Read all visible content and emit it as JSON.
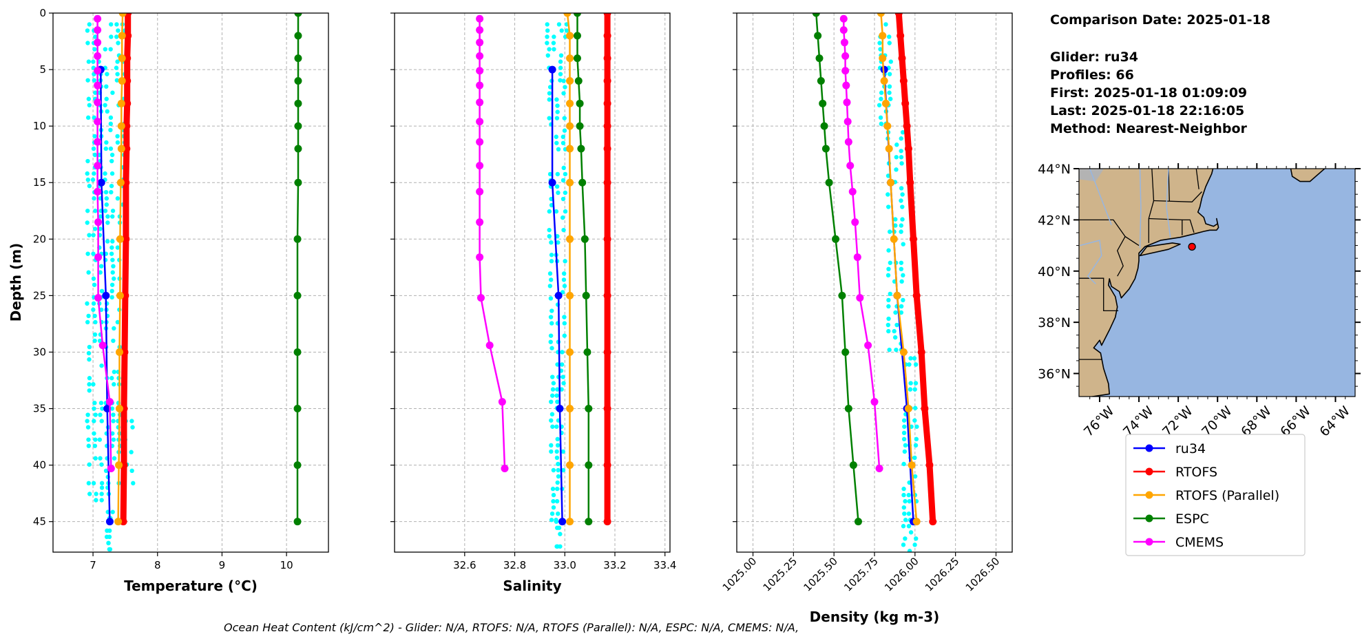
{
  "info": {
    "lines": [
      "Comparison Date: 2025-01-18",
      "Glider: ru34",
      "Profiles: 66",
      "First: 2025-01-18 01:09:09",
      "Last: 2025-01-18 22:16:05",
      "Method: Nearest-Neighbor"
    ]
  },
  "footer": "Ocean Heat Content (kJ/cm^2) - Glider: N/A,  RTOFS: N/A,  RTOFS (Parallel): N/A,  ESPC: N/A,  CMEMS: N/A,",
  "colors": {
    "ru34": "#0000ff",
    "RTOFS": "#ff0000",
    "RTOFS (Parallel)": "#ffa500",
    "ESPC": "#008000",
    "CMEMS": "#ff00ff",
    "glider_scatter": "#00ffff",
    "land": "#cfb48b",
    "ocean": "#97b6e1"
  },
  "legend": [
    "ru34",
    "RTOFS",
    "RTOFS (Parallel)",
    "ESPC",
    "CMEMS"
  ],
  "depths": {
    "glider": [
      5,
      15,
      25,
      35,
      45
    ],
    "model": [
      0,
      2,
      4,
      6,
      8,
      10,
      12,
      15,
      20,
      25,
      30,
      35,
      40,
      45
    ],
    "cmems": [
      0.5,
      1.5,
      2.6,
      3.8,
      5.1,
      6.4,
      7.9,
      9.6,
      11.4,
      13.5,
      15.8,
      18.5,
      21.6,
      25.2,
      29.4,
      34.4,
      40.3
    ]
  },
  "chart_data": [
    {
      "type": "line",
      "xlabel": "Temperature (°C)",
      "ylabel": "Depth (m)",
      "xlim": [
        6.38,
        10.65
      ],
      "ylim": [
        47.7,
        0
      ],
      "xticks": [
        "7",
        "8",
        "9",
        "10"
      ],
      "yticks": [
        "0",
        "5",
        "10",
        "15",
        "20",
        "25",
        "30",
        "35",
        "40",
        "45"
      ],
      "grid": true,
      "glider_scatter_bands": [
        [
          1,
          18,
          6.88,
          7.52
        ],
        [
          18,
          35,
          6.88,
          7.45
        ],
        [
          35,
          42,
          6.88,
          7.65
        ],
        [
          42,
          43.6,
          6.88,
          7.3
        ],
        [
          43.6,
          47.7,
          7.22,
          7.3
        ]
      ],
      "series": [
        {
          "name": "ru34",
          "depths": "glider",
          "values": [
            7.12,
            7.13,
            7.2,
            7.22,
            7.26
          ]
        },
        {
          "name": "RTOFS",
          "depths": "model",
          "values": [
            7.54,
            7.54,
            7.53,
            7.53,
            7.53,
            7.52,
            7.52,
            7.51,
            7.51,
            7.5,
            7.49,
            7.48,
            7.48,
            7.47
          ]
        },
        {
          "name": "RTOFS (Parallel)",
          "depths": "model",
          "values": [
            7.46,
            7.45,
            7.45,
            7.45,
            7.44,
            7.44,
            7.44,
            7.43,
            7.42,
            7.42,
            7.41,
            7.41,
            7.4,
            7.39
          ]
        },
        {
          "name": "ESPC",
          "depths": "model",
          "values": [
            10.18,
            10.18,
            10.18,
            10.18,
            10.18,
            10.18,
            10.18,
            10.18,
            10.17,
            10.17,
            10.17,
            10.17,
            10.17,
            10.17
          ]
        },
        {
          "name": "CMEMS",
          "depths": "cmems",
          "values": [
            7.07,
            7.07,
            7.07,
            7.07,
            7.07,
            7.07,
            7.07,
            7.07,
            7.07,
            7.07,
            7.07,
            7.08,
            7.08,
            7.08,
            7.15,
            7.26,
            7.28
          ]
        }
      ]
    },
    {
      "type": "line",
      "xlabel": "Salinity",
      "xlim": [
        32.32,
        33.42
      ],
      "ylim": [
        47.7,
        0
      ],
      "xticks": [
        "32.6",
        "32.8",
        "33.0",
        "33.2",
        "33.4"
      ],
      "grid": true,
      "glider_scatter_bands": [
        [
          1,
          6,
          32.92,
          33.02
        ],
        [
          6,
          30,
          32.93,
          33.01
        ],
        [
          30,
          45,
          32.94,
          33.0
        ],
        [
          45,
          47.7,
          32.96,
          32.99
        ]
      ],
      "series": [
        {
          "name": "ru34",
          "depths": "glider",
          "values": [
            32.95,
            32.95,
            32.975,
            32.98,
            32.99
          ]
        },
        {
          "name": "RTOFS",
          "depths": "model",
          "values": [
            33.17,
            33.17,
            33.17,
            33.17,
            33.17,
            33.17,
            33.17,
            33.17,
            33.17,
            33.17,
            33.17,
            33.17,
            33.17,
            33.17
          ]
        },
        {
          "name": "RTOFS (Parallel)",
          "depths": "model",
          "values": [
            33.01,
            33.02,
            33.02,
            33.02,
            33.02,
            33.02,
            33.02,
            33.02,
            33.02,
            33.02,
            33.02,
            33.02,
            33.02,
            33.02
          ]
        },
        {
          "name": "ESPC",
          "depths": "model",
          "values": [
            33.05,
            33.05,
            33.05,
            33.055,
            33.06,
            33.06,
            33.065,
            33.07,
            33.08,
            33.085,
            33.09,
            33.095,
            33.095,
            33.095
          ]
        },
        {
          "name": "CMEMS",
          "depths": "cmems",
          "values": [
            32.66,
            32.66,
            32.66,
            32.66,
            32.66,
            32.66,
            32.66,
            32.66,
            32.66,
            32.66,
            32.66,
            32.66,
            32.66,
            32.665,
            32.7,
            32.75,
            32.76
          ]
        }
      ]
    },
    {
      "type": "line",
      "xlabel": "Density (kg m-3)",
      "xlim": [
        1024.9,
        1026.6
      ],
      "ylim": [
        47.7,
        0
      ],
      "xticks": [
        "1025.00",
        "1025.25",
        "1025.50",
        "1025.75",
        "1026.00",
        "1026.25",
        "1026.50"
      ],
      "grid": true,
      "glider_scatter_bands": [
        [
          1,
          10,
          1025.77,
          1025.86
        ],
        [
          10,
          30,
          1025.82,
          1025.94
        ],
        [
          30,
          47.7,
          1025.92,
          1026.02
        ]
      ],
      "series": [
        {
          "name": "ru34",
          "depths": "glider",
          "values": [
            1025.81,
            1025.85,
            1025.89,
            1025.95,
            1025.99
          ]
        },
        {
          "name": "RTOFS",
          "depths": "model",
          "values": [
            1025.9,
            1025.91,
            1025.92,
            1025.93,
            1025.94,
            1025.95,
            1025.96,
            1025.97,
            1025.99,
            1026.01,
            1026.04,
            1026.06,
            1026.09,
            1026.11
          ]
        },
        {
          "name": "RTOFS (Parallel)",
          "depths": "model",
          "values": [
            1025.79,
            1025.8,
            1025.8,
            1025.81,
            1025.82,
            1025.83,
            1025.84,
            1025.85,
            1025.87,
            1025.89,
            1025.93,
            1025.96,
            1025.98,
            1026.01
          ]
        },
        {
          "name": "ESPC",
          "depths": "model",
          "values": [
            1025.39,
            1025.4,
            1025.41,
            1025.42,
            1025.43,
            1025.44,
            1025.45,
            1025.47,
            1025.51,
            1025.55,
            1025.57,
            1025.59,
            1025.62,
            1025.65
          ]
        },
        {
          "name": "CMEMS",
          "depths": "cmems",
          "values": [
            1025.56,
            1025.56,
            1025.565,
            1025.57,
            1025.57,
            1025.575,
            1025.58,
            1025.585,
            1025.59,
            1025.6,
            1025.615,
            1025.63,
            1025.645,
            1025.66,
            1025.71,
            1025.75,
            1025.78
          ]
        }
      ]
    }
  ],
  "map": {
    "lon_range": [
      -77.05,
      -63.0
    ],
    "lat_range": [
      35.1,
      44.0
    ],
    "lat_ticks": [
      "36°N",
      "38°N",
      "40°N",
      "42°N",
      "44°N"
    ],
    "lon_ticks": [
      "76°W",
      "74°W",
      "72°W",
      "70°W",
      "68°W",
      "66°W",
      "64°W"
    ],
    "glider_position": {
      "lon": -71.3,
      "lat": 40.95,
      "color": "#ff0000"
    }
  }
}
